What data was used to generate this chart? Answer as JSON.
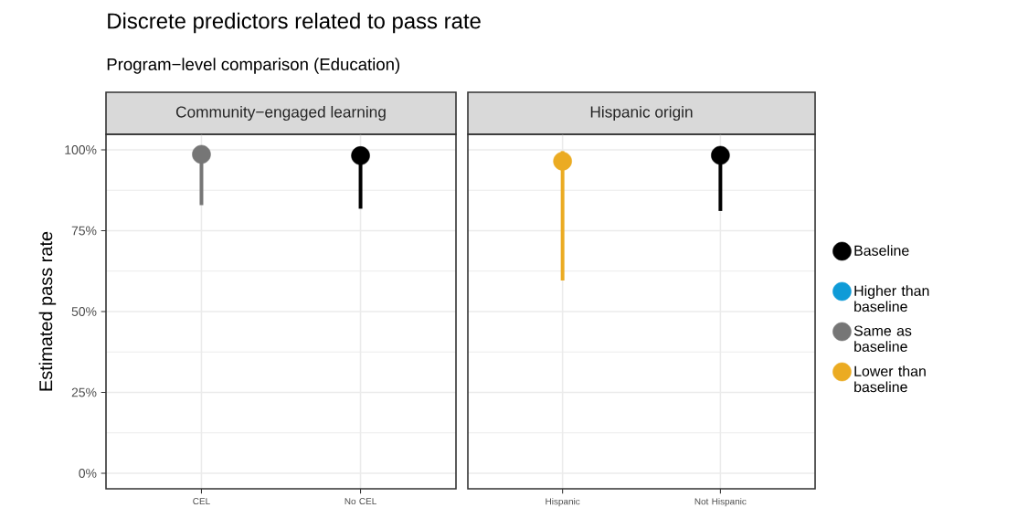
{
  "chart_data": [
    {
      "type": "scatter",
      "title": "Community−engaged learning",
      "ylabel": "Estimated pass rate",
      "annotations": [
        "Discrete predictors related to pass rate",
        "Program−level comparison (Education)"
      ],
      "categories": [
        "CEL",
        "No CEL"
      ],
      "ylim": [
        -4.8,
        104.8
      ],
      "yticks": [
        {
          "value": 0,
          "label": "0%"
        },
        {
          "value": 25,
          "label": "25%"
        },
        {
          "value": 50,
          "label": "50%"
        },
        {
          "value": 75,
          "label": "75%"
        },
        {
          "value": 100,
          "label": "100%"
        }
      ],
      "grid": true,
      "marker": "circle",
      "legend": false,
      "series": [
        {
          "color": "#000000",
          "values": [
            null,
            98.2
          ],
          "errors": [
            null,
            [
              81.8,
              98.2
            ]
          ]
        },
        {
          "color": "#767676",
          "values": [
            98.6,
            null
          ],
          "errors": [
            [
              82.9,
              98.6
            ],
            null
          ]
        }
      ]
    },
    {
      "type": "scatter",
      "title": "Hispanic origin",
      "categories": [
        "Hispanic",
        "Not Hispanic"
      ],
      "ylim": [
        -4.8,
        104.8
      ],
      "yticks": [
        0,
        25,
        50,
        75,
        100
      ],
      "tick_labels": "x",
      "grid": true,
      "marker": "circle",
      "legend": "right",
      "series": [
        {
          "name": "Baseline",
          "color": "#000000",
          "values": [
            null,
            98.3
          ],
          "errors": [
            null,
            [
              81.1,
              98.3
            ]
          ]
        },
        {
          "name": "Higher than baseline",
          "color": "#0f9bd7",
          "values": [
            null,
            null
          ],
          "errors": [
            null,
            null
          ]
        },
        {
          "name": "Same as baseline",
          "color": "#767676",
          "values": [
            null,
            null
          ],
          "errors": [
            null,
            null
          ]
        },
        {
          "name": "Lower than baseline",
          "color": "#ebab22",
          "values": [
            96.5,
            null
          ],
          "errors": [
            [
              59.6,
              99.6
            ],
            null
          ]
        }
      ]
    }
  ]
}
